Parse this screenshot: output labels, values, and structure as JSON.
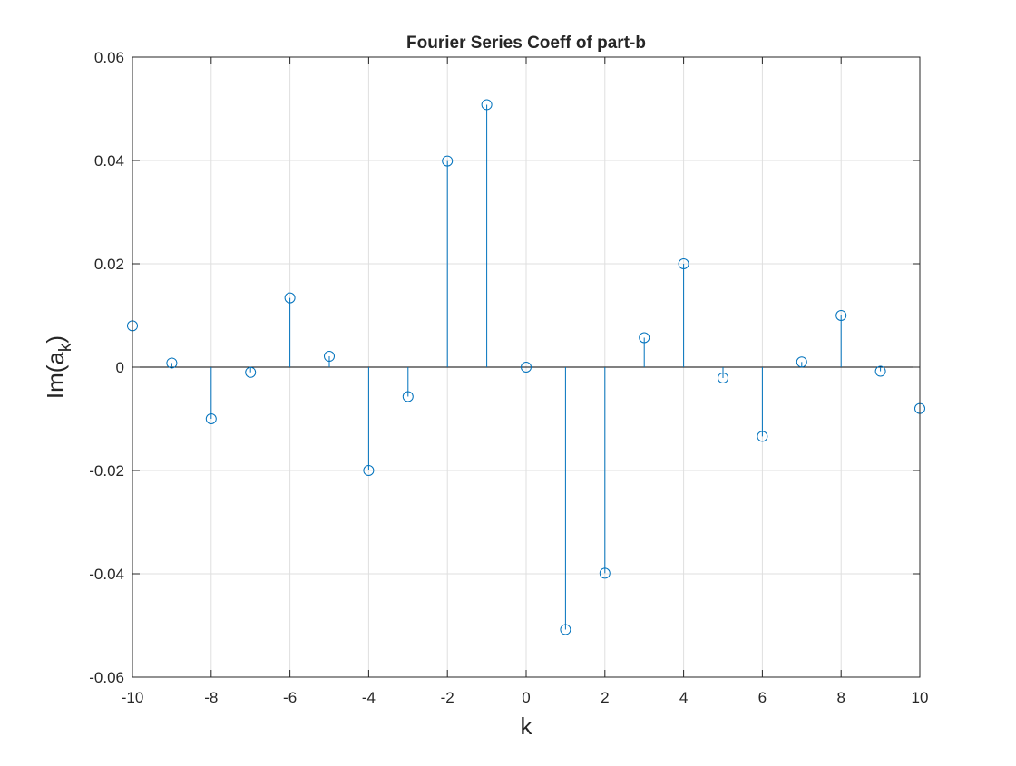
{
  "chart_data": {
    "type": "stem",
    "title": "Fourier Series Coeff of part-b",
    "xlabel": "k",
    "ylabel": {
      "main": "Im(a",
      "subscript": "k",
      "close": ")"
    },
    "xlim": [
      -10,
      10
    ],
    "ylim": [
      -0.06,
      0.06
    ],
    "xticks": [
      -10,
      -8,
      -6,
      -4,
      -2,
      0,
      2,
      4,
      6,
      8,
      10
    ],
    "yticks": [
      -0.06,
      -0.04,
      -0.02,
      0,
      0.02,
      0.04,
      0.06
    ],
    "xtick_labels": [
      "-10",
      "-8",
      "-6",
      "-4",
      "-2",
      "0",
      "2",
      "4",
      "6",
      "8",
      "10"
    ],
    "ytick_labels": [
      "-0.06",
      "-0.04",
      "-0.02",
      "0",
      "0.02",
      "0.04",
      "0.06"
    ],
    "grid": true,
    "series": [
      {
        "name": "Im(a_k)",
        "color": "#0072BD",
        "x": [
          -10,
          -9,
          -8,
          -7,
          -6,
          -5,
          -4,
          -3,
          -2,
          -1,
          0,
          1,
          2,
          3,
          4,
          5,
          6,
          7,
          8,
          9,
          10
        ],
        "values": [
          0.008,
          0.0008,
          -0.01,
          -0.001,
          0.0134,
          0.0021,
          -0.02,
          -0.0057,
          0.0399,
          0.0508,
          0,
          -0.0508,
          -0.0399,
          0.0057,
          0.02,
          -0.0021,
          -0.0134,
          0.001,
          0.01,
          -0.0008,
          -0.008
        ]
      }
    ]
  }
}
